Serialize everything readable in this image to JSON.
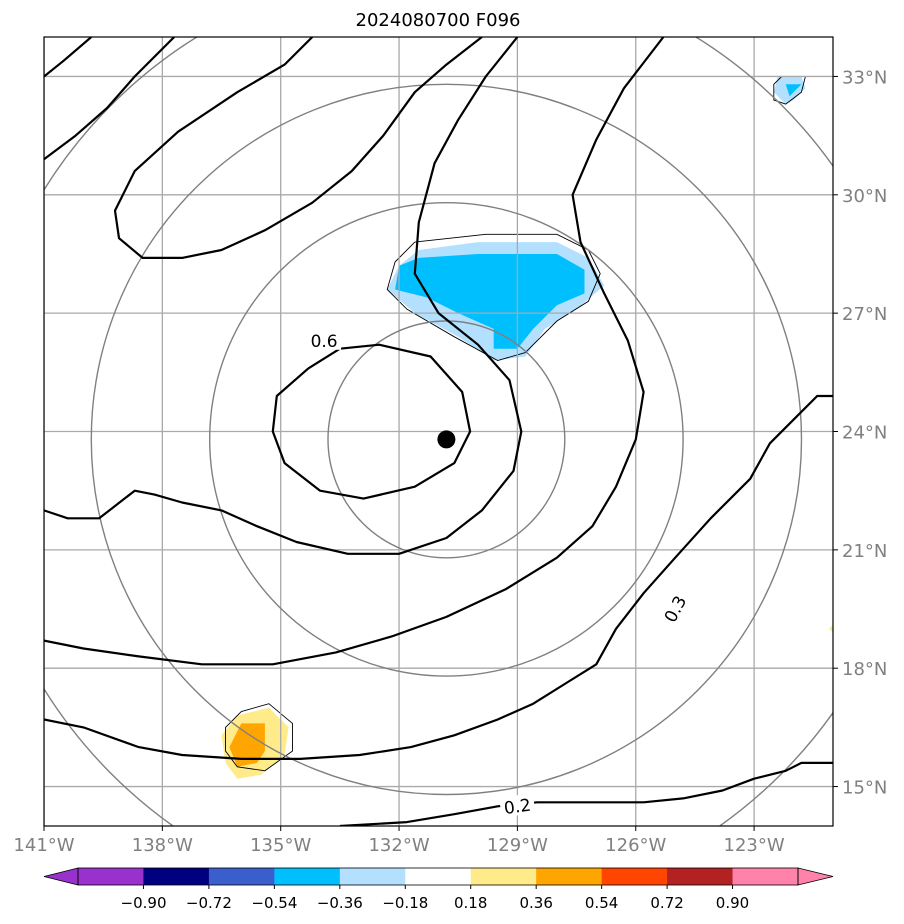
{
  "title": "2024080700 F096",
  "chart_data": {
    "type": "map-contour",
    "title": "2024080700 F096",
    "lon_range": [
      -141,
      -121
    ],
    "lat_range": [
      14,
      34
    ],
    "lon_ticks": [
      {
        "lon": -141,
        "label": "141°W"
      },
      {
        "lon": -138,
        "label": "138°W"
      },
      {
        "lon": -135,
        "label": "135°W"
      },
      {
        "lon": -132,
        "label": "132°W"
      },
      {
        "lon": -129,
        "label": "129°W"
      },
      {
        "lon": -126,
        "label": "126°W"
      },
      {
        "lon": -123,
        "label": "123°W"
      }
    ],
    "lat_ticks": [
      {
        "lat": 15,
        "label": "15°N"
      },
      {
        "lat": 18,
        "label": "18°N"
      },
      {
        "lat": 21,
        "label": "21°N"
      },
      {
        "lat": 24,
        "label": "24°N"
      },
      {
        "lat": 27,
        "label": "27°N"
      },
      {
        "lat": 30,
        "label": "30°N"
      },
      {
        "lat": 33,
        "label": "33°N"
      }
    ],
    "grid": true,
    "center": {
      "lon": -130.8,
      "lat": 23.8
    },
    "range_rings_deg": [
      3,
      6,
      9,
      12
    ],
    "contour_labels": [
      {
        "text": "0.6",
        "lon": -133.9,
        "lat": 26.3,
        "angle": 0
      },
      {
        "text": "0.3",
        "lon": -125.0,
        "lat": 19.5,
        "angle": -62
      },
      {
        "text": "0.2",
        "lon": -129.0,
        "lat": 14.5,
        "angle": -8
      }
    ],
    "contours": [
      {
        "level": 0.6,
        "points": [
          [
            -134.3,
            25.6
          ],
          [
            -133.5,
            26.1
          ],
          [
            -132.5,
            26.2
          ],
          [
            -131.2,
            25.9
          ],
          [
            -130.4,
            25.0
          ],
          [
            -130.2,
            24.0
          ],
          [
            -130.6,
            23.2
          ],
          [
            -131.6,
            22.6
          ],
          [
            -132.9,
            22.3
          ],
          [
            -134.0,
            22.5
          ],
          [
            -134.9,
            23.2
          ],
          [
            -135.2,
            24.0
          ],
          [
            -135.1,
            24.9
          ],
          [
            -134.3,
            25.6
          ]
        ]
      },
      {
        "level": 0.4,
        "points": [
          [
            -141,
            22.0
          ],
          [
            -140.4,
            21.8
          ],
          [
            -139.6,
            21.8
          ],
          [
            -138.7,
            22.5
          ],
          [
            -138.2,
            22.4
          ],
          [
            -137.5,
            22.2
          ],
          [
            -136.5,
            22.0
          ],
          [
            -135.6,
            21.6
          ],
          [
            -134.6,
            21.2
          ],
          [
            -133.3,
            20.9
          ],
          [
            -132.0,
            20.9
          ],
          [
            -130.8,
            21.3
          ],
          [
            -129.9,
            22.0
          ],
          [
            -129.1,
            23.0
          ],
          [
            -128.9,
            24.0
          ],
          [
            -129.2,
            25.3
          ],
          [
            -130.0,
            26.2
          ],
          [
            -131.0,
            27.0
          ],
          [
            -131.6,
            28.0
          ],
          [
            -131.5,
            29.3
          ],
          [
            -131.1,
            30.8
          ],
          [
            -130.5,
            31.9
          ],
          [
            -129.8,
            33.0
          ],
          [
            -129.0,
            34.0
          ]
        ]
      },
      {
        "level": 0.35,
        "points": [
          [
            -141,
            18.7
          ],
          [
            -140.0,
            18.5
          ],
          [
            -138.6,
            18.3
          ],
          [
            -137.0,
            18.1
          ],
          [
            -135.2,
            18.1
          ],
          [
            -133.6,
            18.4
          ],
          [
            -132.2,
            18.8
          ],
          [
            -130.8,
            19.3
          ],
          [
            -129.3,
            20.0
          ],
          [
            -128.0,
            20.8
          ],
          [
            -127.1,
            21.6
          ],
          [
            -126.5,
            22.6
          ],
          [
            -126.0,
            23.8
          ],
          [
            -125.8,
            25.0
          ],
          [
            -126.2,
            26.3
          ],
          [
            -126.8,
            27.5
          ],
          [
            -127.4,
            28.8
          ],
          [
            -127.6,
            30.0
          ],
          [
            -127.0,
            31.4
          ],
          [
            -126.3,
            32.7
          ],
          [
            -125.3,
            34.0
          ]
        ]
      },
      {
        "level": 0.3,
        "points": [
          [
            -141,
            16.7
          ],
          [
            -140.0,
            16.5
          ],
          [
            -138.6,
            16.0
          ],
          [
            -137.5,
            15.8
          ],
          [
            -136.0,
            15.7
          ],
          [
            -134.5,
            15.7
          ],
          [
            -133.0,
            15.8
          ],
          [
            -131.7,
            16.0
          ],
          [
            -130.6,
            16.3
          ],
          [
            -129.5,
            16.7
          ],
          [
            -128.6,
            17.1
          ],
          [
            -127.8,
            17.6
          ],
          [
            -127.0,
            18.1
          ],
          [
            -126.5,
            19.0
          ],
          [
            -125.8,
            19.9
          ],
          [
            -125.0,
            20.8
          ],
          [
            -124.1,
            21.8
          ],
          [
            -123.1,
            22.8
          ],
          [
            -122.6,
            23.7
          ],
          [
            -122.0,
            24.3
          ],
          [
            -121.4,
            24.9
          ],
          [
            -121.0,
            24.9
          ]
        ]
      },
      {
        "level": 0.2,
        "points": [
          [
            -133.5,
            14.0
          ],
          [
            -131.8,
            14.1
          ],
          [
            -130.6,
            14.3
          ],
          [
            -129.5,
            14.5
          ],
          [
            -128.5,
            14.6
          ],
          [
            -127.0,
            14.6
          ],
          [
            -125.8,
            14.6
          ],
          [
            -124.8,
            14.7
          ],
          [
            -123.8,
            14.9
          ],
          [
            -123.0,
            15.2
          ],
          [
            -122.2,
            15.4
          ],
          [
            -121.8,
            15.6
          ],
          [
            -121.0,
            15.6
          ]
        ]
      },
      {
        "level": 0.4,
        "points": [
          [
            -141,
            30.9
          ],
          [
            -140.2,
            31.5
          ],
          [
            -139.4,
            32.2
          ],
          [
            -138.7,
            33.0
          ],
          [
            -137.7,
            34.0
          ]
        ]
      },
      {
        "level": 0.45,
        "points": [
          [
            -141,
            33.0
          ],
          [
            -140.5,
            33.4
          ],
          [
            -139.8,
            34.0
          ]
        ]
      },
      {
        "level": 0.5,
        "points": [
          [
            -134.2,
            34.0
          ],
          [
            -134.9,
            33.3
          ],
          [
            -136.1,
            32.6
          ],
          [
            -137.6,
            31.6
          ],
          [
            -138.7,
            30.6
          ],
          [
            -139.2,
            29.6
          ],
          [
            -139.1,
            28.9
          ],
          [
            -138.5,
            28.4
          ],
          [
            -137.5,
            28.4
          ],
          [
            -136.5,
            28.6
          ],
          [
            -135.4,
            29.1
          ],
          [
            -134.2,
            29.8
          ],
          [
            -133.2,
            30.6
          ],
          [
            -132.4,
            31.5
          ],
          [
            -131.6,
            32.6
          ],
          [
            -130.8,
            33.3
          ],
          [
            -129.9,
            34.0
          ]
        ]
      }
    ],
    "filled_regions": [
      {
        "level": -0.36,
        "color": "#b3e0ff",
        "points": [
          [
            -131.5,
            28.6
          ],
          [
            -130.0,
            28.8
          ],
          [
            -128.0,
            28.8
          ],
          [
            -127.2,
            28.4
          ],
          [
            -126.8,
            27.7
          ],
          [
            -127.5,
            27.1
          ],
          [
            -128.3,
            26.6
          ],
          [
            -128.8,
            25.9
          ],
          [
            -129.6,
            25.8
          ],
          [
            -130.5,
            26.4
          ],
          [
            -131.6,
            27.0
          ],
          [
            -132.3,
            27.6
          ],
          [
            -132.0,
            28.2
          ],
          [
            -131.5,
            28.6
          ]
        ]
      },
      {
        "level": -0.54,
        "color": "#00bfff",
        "points": [
          [
            -131.5,
            28.4
          ],
          [
            -130.0,
            28.5
          ],
          [
            -128.0,
            28.5
          ],
          [
            -127.3,
            28.1
          ],
          [
            -127.3,
            27.5
          ],
          [
            -128.0,
            27.2
          ],
          [
            -128.6,
            26.6
          ],
          [
            -129.0,
            26.1
          ],
          [
            -129.6,
            26.1
          ],
          [
            -129.6,
            26.6
          ],
          [
            -130.5,
            27.0
          ],
          [
            -131.3,
            27.4
          ],
          [
            -132.1,
            27.6
          ],
          [
            -132.0,
            28.2
          ],
          [
            -131.5,
            28.4
          ]
        ]
      },
      {
        "level": 0.36,
        "color": "#ffeb8a",
        "points": [
          [
            -136.1,
            16.8
          ],
          [
            -135.3,
            17.0
          ],
          [
            -134.8,
            16.5
          ],
          [
            -134.9,
            15.8
          ],
          [
            -135.5,
            15.3
          ],
          [
            -136.1,
            15.2
          ],
          [
            -136.4,
            15.6
          ],
          [
            -136.5,
            16.3
          ],
          [
            -136.1,
            16.8
          ]
        ]
      },
      {
        "level": 0.54,
        "color": "#ffa500",
        "points": [
          [
            -136.0,
            16.6
          ],
          [
            -135.4,
            16.6
          ],
          [
            -135.4,
            15.9
          ],
          [
            -135.6,
            15.6
          ],
          [
            -136.1,
            15.5
          ],
          [
            -136.3,
            16.0
          ],
          [
            -136.0,
            16.6
          ]
        ]
      },
      {
        "level": -0.36,
        "color": "#b3e0ff",
        "points": [
          [
            -122.4,
            33.0
          ],
          [
            -121.8,
            33.0
          ],
          [
            -121.7,
            32.7
          ],
          [
            -122.0,
            32.4
          ],
          [
            -122.2,
            32.3
          ],
          [
            -122.5,
            32.6
          ],
          [
            -122.4,
            33.0
          ]
        ]
      },
      {
        "level": -0.54,
        "color": "#00bfff",
        "points": [
          [
            -122.2,
            32.8
          ],
          [
            -121.8,
            32.8
          ],
          [
            -122.1,
            32.5
          ],
          [
            -122.2,
            32.8
          ]
        ]
      },
      {
        "level": 0.36,
        "color": "#ffeb8a",
        "points": [
          [
            -121.0,
            19.1
          ],
          [
            -121.1,
            19.0
          ],
          [
            -121.0,
            18.9
          ]
        ]
      }
    ],
    "thin_outlines": [
      [
        [
          -131.6,
          28.8
        ],
        [
          -129.8,
          29.0
        ],
        [
          -128.0,
          29.0
        ],
        [
          -127.2,
          28.6
        ],
        [
          -126.9,
          28.0
        ],
        [
          -127.2,
          27.3
        ],
        [
          -128.0,
          26.8
        ],
        [
          -128.8,
          26.0
        ],
        [
          -129.5,
          25.8
        ],
        [
          -130.6,
          26.4
        ],
        [
          -131.8,
          27.1
        ],
        [
          -132.3,
          27.6
        ],
        [
          -132.1,
          28.3
        ],
        [
          -131.6,
          28.8
        ]
      ],
      [
        [
          -136.0,
          16.9
        ],
        [
          -135.3,
          17.1
        ],
        [
          -134.7,
          16.6
        ],
        [
          -134.7,
          15.9
        ],
        [
          -135.4,
          15.4
        ],
        [
          -136.1,
          15.5
        ],
        [
          -136.4,
          15.9
        ],
        [
          -136.4,
          16.5
        ],
        [
          -136.0,
          16.9
        ]
      ],
      [
        [
          -122.3,
          33.0
        ],
        [
          -121.7,
          33.0
        ],
        [
          -121.8,
          32.6
        ],
        [
          -122.2,
          32.3
        ],
        [
          -122.5,
          32.4
        ],
        [
          -122.5,
          32.8
        ],
        [
          -122.3,
          33.0
        ]
      ]
    ],
    "colorbar": {
      "levels": [
        "−0.90",
        "−0.72",
        "−0.54",
        "−0.36",
        "−0.18",
        "0.18",
        "0.36",
        "0.54",
        "0.72",
        "0.90"
      ],
      "under_color": "#9932cc",
      "over_color": "#ff82ab",
      "colors": [
        "#9932cc",
        "#000080",
        "#3a5fcd",
        "#00bfff",
        "#b3e0ff",
        "#ffffff",
        "#ffeb8a",
        "#ffa500",
        "#ff4500",
        "#b22222",
        "#ff82ab"
      ]
    }
  }
}
